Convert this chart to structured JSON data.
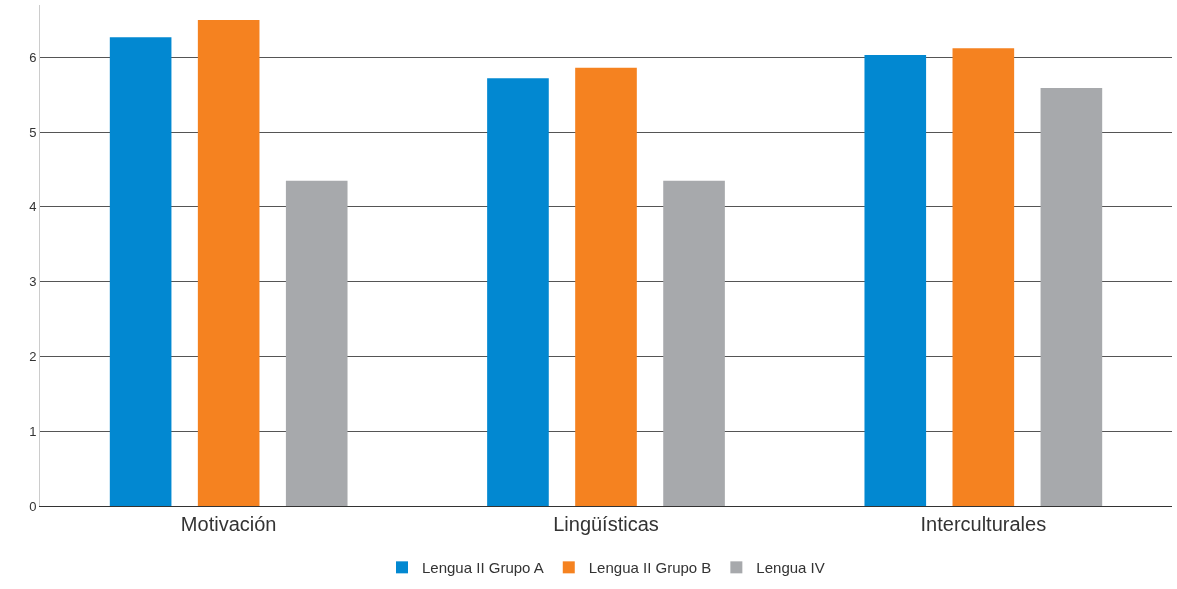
{
  "chart_data": {
    "type": "bar",
    "categories": [
      "Motivación",
      "Lingüísticas",
      "Interculturales"
    ],
    "series": [
      {
        "name": "Lengua II Grupo A",
        "color": "#0288d1",
        "values": [
          6.27,
          5.72,
          6.03
        ]
      },
      {
        "name": "Lengua II Grupo B",
        "color": "#f58220",
        "values": [
          6.5,
          5.86,
          6.12
        ]
      },
      {
        "name": "Lengua IV",
        "color": "#a7a9ac",
        "values": [
          4.35,
          4.35,
          5.59
        ]
      }
    ],
    "ylim": [
      0,
      6.7
    ],
    "yticks": [
      0,
      1,
      2,
      3,
      4,
      5,
      6
    ],
    "grid": "y",
    "legend": "bottom"
  }
}
